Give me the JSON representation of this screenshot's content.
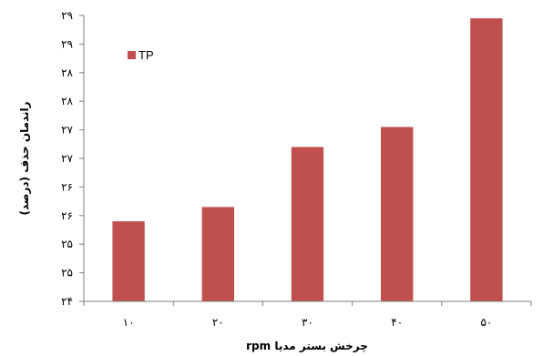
{
  "chart_data": {
    "type": "bar",
    "categories": [
      "۱۰",
      "۲۰",
      "۳۰",
      "۴۰",
      "۵۰"
    ],
    "series": [
      {
        "name": "TP",
        "values": [
          25.4,
          25.65,
          26.7,
          27.05,
          28.95
        ],
        "color": "#c0504d"
      }
    ],
    "ylim": [
      24,
      29
    ],
    "yticks": [
      24,
      24.5,
      25,
      25.5,
      26,
      26.5,
      27,
      27.5,
      28,
      28.5,
      29
    ],
    "ytick_labels": [
      "۲۴",
      "۲۵",
      "۲۵",
      "۲۶",
      "۲۶",
      "۲۷",
      "۲۷",
      "۲۸",
      "۲۸",
      "۲۹",
      "۲۹"
    ],
    "xlabel": "چرخش بستر مدیا rpm",
    "ylabel": "راندمان حذف (درصد)",
    "legend": {
      "position": "top-left",
      "label": "TP"
    },
    "grid": false
  }
}
